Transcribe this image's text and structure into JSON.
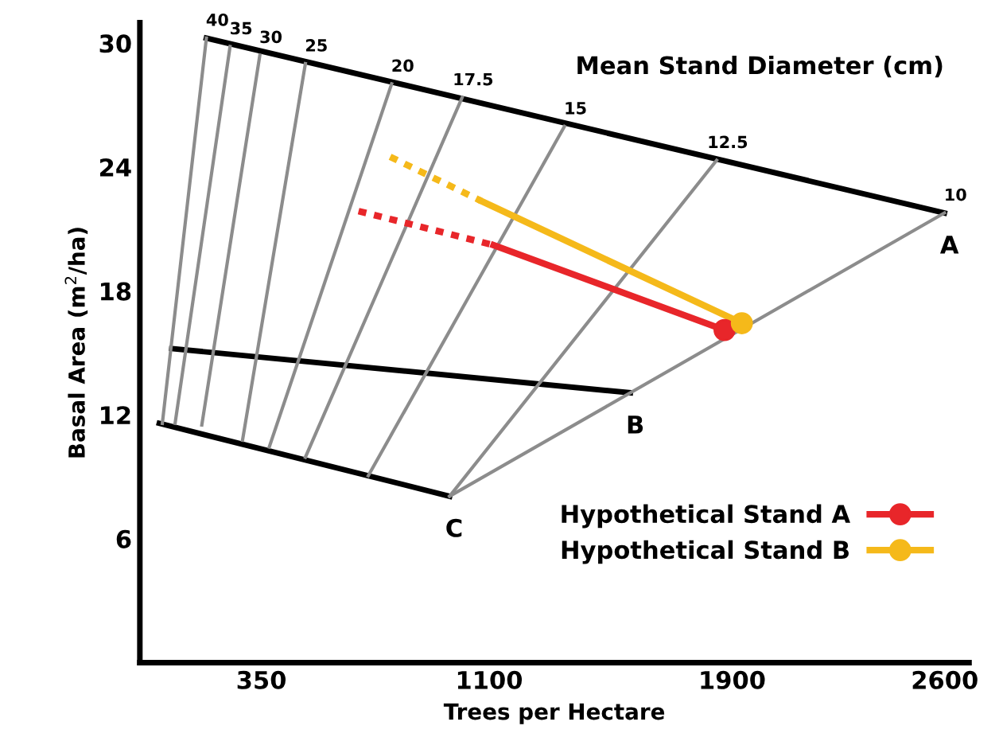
{
  "chart_data": {
    "type": "line",
    "xlabel": "Trees per Hectare",
    "ylabel": "Basal Area (m$^{2}$/ha)",
    "xlim": [
      -50,
      2680
    ],
    "ylim": [
      0,
      31
    ],
    "xticks": [
      350,
      1100,
      1900,
      2600
    ],
    "yticks": [
      6,
      12,
      18,
      24,
      30
    ],
    "grid": false,
    "legend": "bottom right",
    "marker": "none",
    "line_style": "solid",
    "series": [
      {
        "color": "#000000",
        "x": [
          169,
          2599
        ],
        "values": [
          30.25,
          21.78
        ]
      },
      {
        "color": "#000000",
        "x": [
          55,
          1565
        ],
        "values": [
          15.21,
          13.07
        ]
      },
      {
        "color": "#000000",
        "x": [
          14,
          970
        ],
        "values": [
          11.59,
          8.06
        ]
      },
      {
        "color": "#8c8c8c",
        "x": [
          24,
          169
        ],
        "values": [
          11.59,
          30.25
        ]
      },
      {
        "color": "#8c8c8c",
        "x": [
          66,
          247
        ],
        "values": [
          11.59,
          29.84
        ]
      },
      {
        "color": "#8c8c8c",
        "x": [
          154,
          345
        ],
        "values": [
          11.51,
          29.42
        ]
      },
      {
        "color": "#8c8c8c",
        "x": [
          288,
          495
        ],
        "values": [
          10.77,
          29.01
        ]
      },
      {
        "color": "#8c8c8c",
        "x": [
          376,
          779
        ],
        "values": [
          10.44,
          28.03
        ]
      },
      {
        "color": "#8c8c8c",
        "x": [
          495,
          1011
        ],
        "values": [
          9.95,
          27.37
        ]
      },
      {
        "color": "#8c8c8c",
        "x": [
          702,
          1348
        ],
        "values": [
          9.05,
          25.97
        ]
      },
      {
        "color": "#8c8c8c",
        "x": [
          970,
          1849
        ],
        "values": [
          8.06,
          24.33
        ]
      },
      {
        "color": "#8c8c8c",
        "x": [
          970,
          2599
        ],
        "values": [
          8.06,
          21.78
        ]
      },
      {
        "name": "Hypothetical Stand A",
        "color": "#e8262a",
        "marker": "circle",
        "x": [
          1875,
          1115
        ],
        "values": [
          16.11,
          20.22
        ]
      },
      {
        "color": "#e8262a",
        "line_style": "dotted",
        "x": [
          1115,
          670
        ],
        "values": [
          20.22,
          21.87
        ]
      },
      {
        "name": "Hypothetical Stand B",
        "color": "#f5b91a",
        "marker": "circle",
        "x": [
          1932,
          1074
        ],
        "values": [
          16.44,
          22.36
        ]
      },
      {
        "color": "#f5b91a",
        "line_style": "dotted",
        "x": [
          1074,
          774
        ],
        "values": [
          22.36,
          24.5
        ]
      }
    ],
    "annotations": [
      {
        "text": "40",
        "x": 169,
        "y": 30.25
      },
      {
        "text": "35",
        "x": 247,
        "y": 29.84
      },
      {
        "text": "30",
        "x": 345,
        "y": 29.42
      },
      {
        "text": "25",
        "x": 495,
        "y": 29.01
      },
      {
        "text": "20",
        "x": 779,
        "y": 28.03
      },
      {
        "text": "17.5",
        "x": 1011,
        "y": 27.37
      },
      {
        "text": "15",
        "x": 1348,
        "y": 25.97
      },
      {
        "text": "12.5",
        "x": 1849,
        "y": 24.33
      },
      {
        "text": "10",
        "x": 2599,
        "y": 21.78
      },
      {
        "text": "A",
        "x": 2599,
        "y": 21.78
      },
      {
        "text": "B",
        "x": 1565,
        "y": 13.07
      },
      {
        "text": "C",
        "x": 970,
        "y": 8.06
      },
      "Mean Stand Diameter (cm)"
    ]
  }
}
